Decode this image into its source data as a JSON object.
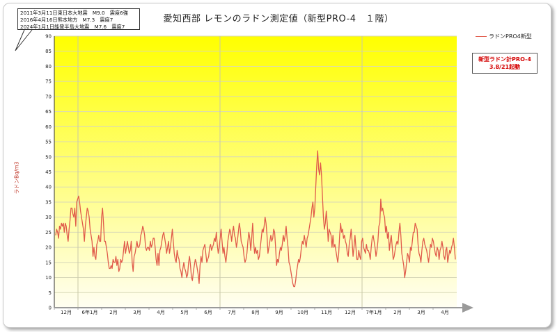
{
  "chart_data": {
    "type": "line",
    "title": "愛知西部 レモンのラドン測定値（新型PRO-4　１階）",
    "ylabel": "ラドンBq/m3",
    "ylim": [
      0,
      90
    ],
    "yticks": [
      0,
      5,
      10,
      15,
      20,
      25,
      30,
      35,
      40,
      45,
      50,
      55,
      60,
      65,
      70,
      75,
      80,
      85,
      90
    ],
    "x_tick_labels": [
      "12月",
      "6年1月",
      "2月",
      "3月",
      "4月",
      "5月",
      "6月",
      "7月",
      "8月",
      "9月",
      "10月",
      "11月",
      "12月",
      "7年1月",
      "2月",
      "3月",
      "4月"
    ],
    "grid": true,
    "legend_position": "top-right",
    "series": [
      {
        "name": "ラドンPRO4新型",
        "color": "#e05a4a",
        "values": [
          24,
          26,
          25,
          23,
          27,
          26,
          28,
          27,
          28,
          25,
          28,
          27,
          24,
          22,
          26,
          29,
          33,
          33,
          31,
          30,
          33,
          27,
          35,
          36,
          37,
          35,
          32,
          30,
          28,
          26,
          22,
          27,
          30,
          33,
          32,
          30,
          26,
          24,
          22,
          17,
          20,
          17,
          16,
          21,
          22,
          24,
          22,
          22,
          30,
          33,
          28,
          22,
          22,
          20,
          18,
          15,
          13,
          13,
          14,
          13,
          16,
          15,
          15,
          17,
          14,
          16,
          12,
          13,
          16,
          15,
          16,
          19,
          22,
          18,
          20,
          22,
          20,
          18,
          19,
          22,
          15,
          12,
          17,
          18,
          20,
          22,
          20,
          20,
          21,
          24,
          25,
          27,
          26,
          24,
          20,
          19,
          20,
          20,
          19,
          22,
          20,
          21,
          23,
          23,
          20,
          16,
          14,
          18,
          14,
          19,
          20,
          22,
          24,
          25,
          23,
          21,
          18,
          20,
          22,
          18,
          20,
          23,
          26,
          22,
          18,
          16,
          15,
          19,
          17,
          16,
          13,
          12,
          10,
          13,
          15,
          13,
          12,
          10,
          11,
          15,
          17,
          14,
          10,
          9,
          12,
          14,
          16,
          15,
          13,
          11,
          8,
          14,
          17,
          15,
          19,
          20,
          21,
          18,
          15,
          16,
          17,
          20,
          21,
          19,
          20,
          21,
          23,
          22,
          25,
          21,
          18,
          20,
          23,
          26,
          22,
          18,
          20,
          17,
          15,
          18,
          22,
          24,
          26,
          25,
          22,
          25,
          27,
          24,
          23,
          20,
          22,
          25,
          28,
          26,
          22,
          21,
          20,
          17,
          15,
          16,
          18,
          22,
          25,
          23,
          19,
          23,
          28,
          22,
          18,
          20,
          18,
          19,
          16,
          17,
          20,
          23,
          26,
          25,
          27,
          30,
          28,
          24,
          18,
          20,
          22,
          24,
          22,
          23,
          26,
          25,
          20,
          14,
          16,
          15,
          18,
          20,
          19,
          21,
          24,
          22,
          24,
          27,
          23,
          20,
          15,
          14,
          12,
          10,
          8,
          7,
          7,
          9,
          12,
          14,
          16,
          15,
          17,
          20,
          22,
          21,
          24,
          22,
          20,
          23,
          24,
          26,
          28,
          30,
          33,
          35,
          30,
          33,
          40,
          47,
          52,
          46,
          44,
          48,
          44,
          37,
          30,
          26,
          28,
          32,
          28,
          22,
          26,
          25,
          24,
          20,
          24,
          20,
          21,
          19,
          17,
          15,
          18,
          24,
          28,
          25,
          26,
          23,
          24,
          22,
          21,
          18,
          17,
          21,
          23,
          26,
          22,
          17,
          20,
          24,
          20,
          16,
          16,
          19,
          17,
          16,
          22,
          23,
          20,
          19,
          18,
          21,
          19,
          19,
          18,
          16,
          20,
          23,
          24,
          22,
          20,
          17,
          19,
          22,
          27,
          28,
          36,
          32,
          33,
          31,
          30,
          25,
          27,
          23,
          25,
          19,
          22,
          24,
          20,
          16,
          17,
          19,
          21,
          22,
          21,
          25,
          28,
          24,
          18,
          16,
          14,
          10,
          12,
          15,
          18,
          17,
          15,
          20,
          19,
          22,
          25,
          25,
          28,
          27,
          26,
          21,
          18,
          17,
          15,
          19,
          22,
          23,
          21,
          20,
          19,
          17,
          15,
          18,
          21,
          20,
          23,
          22,
          20,
          18,
          17,
          20,
          19,
          16,
          19,
          20,
          22,
          20,
          17,
          16,
          19,
          20,
          15,
          17,
          19,
          18,
          20,
          21,
          23,
          20,
          16
        ]
      }
    ]
  },
  "annotation_box": {
    "lines": [
      "2011年3月11日東日本大地震　M9.0　震度6強",
      "2016年4月16日熊本地方　M7.3　震度7",
      "2024年1月1日能登半島大地震　M7.6　震度7"
    ]
  },
  "note_box": {
    "line1": "新型ラドン計PRO-4",
    "line2": "3.8/21起動"
  },
  "colors": {
    "plot_top": "#ffff00",
    "plot_bottom": "#fffef2",
    "line": "#e05a4a",
    "grid": "#d8d8b8"
  }
}
